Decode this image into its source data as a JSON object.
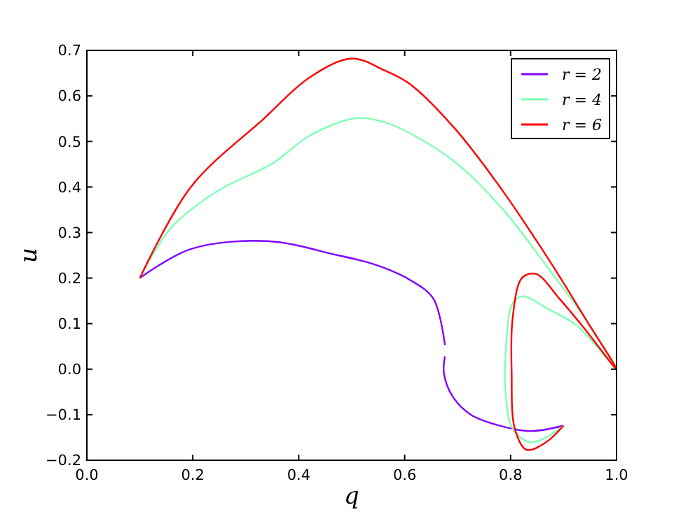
{
  "chart_data": {
    "type": "line",
    "xlabel": "q",
    "ylabel": "u",
    "xlim": [
      0,
      1
    ],
    "ylim": [
      -0.2,
      0.7
    ],
    "xticks": [
      {
        "value": 0,
        "label": "0.0"
      },
      {
        "value": 0.2,
        "label": "0.2"
      },
      {
        "value": 0.4,
        "label": "0.4"
      },
      {
        "value": 0.6,
        "label": "0.6"
      },
      {
        "value": 0.8,
        "label": "0.8"
      },
      {
        "value": 1,
        "label": "1.0"
      }
    ],
    "yticks": [
      {
        "value": -0.2,
        "label": "−0.2"
      },
      {
        "value": -0.1,
        "label": "−0.1"
      },
      {
        "value": 0,
        "label": "0.0"
      },
      {
        "value": 0.1,
        "label": "0.1"
      },
      {
        "value": 0.2,
        "label": "0.2"
      },
      {
        "value": 0.3,
        "label": "0.3"
      },
      {
        "value": 0.4,
        "label": "0.4"
      },
      {
        "value": 0.5,
        "label": "0.5"
      },
      {
        "value": 0.6,
        "label": "0.6"
      },
      {
        "value": 0.7,
        "label": "0.7"
      }
    ],
    "grid": false,
    "legend": "top right",
    "marker": "none",
    "line_style": "solid",
    "series": [
      {
        "name": "r = 2",
        "color": "#8000ff",
        "x": [
          0.1,
          0.197,
          0.342,
          0.474,
          0.522,
          0.562,
          0.61,
          0.654,
          0.676,
          null,
          0.676,
          0.674,
          0.69,
          0.725,
          0.786,
          0.839,
          0.9
        ],
        "values": [
          0.2,
          0.264,
          0.281,
          0.25,
          0.237,
          0.222,
          0.196,
          0.155,
          0.053,
          null,
          0.028,
          -0.008,
          -0.059,
          -0.1,
          -0.126,
          -0.136,
          -0.124
        ]
      },
      {
        "name": "r = 4",
        "color": "#80ffb4",
        "x": [
          0.1,
          0.158,
          0.245,
          0.351,
          0.421,
          0.509,
          0.562,
          0.61,
          0.698,
          0.786,
          0.874,
          0.945,
          1.0,
          0.927,
          0.874,
          0.822,
          0.804,
          0.791,
          0.791,
          0.804,
          0.835,
          0.865,
          0.9
        ],
        "values": [
          0.2,
          0.309,
          0.39,
          0.452,
          0.513,
          0.551,
          0.542,
          0.518,
          0.452,
          0.35,
          0.217,
          0.104,
          0.0,
          0.094,
          0.13,
          0.16,
          0.145,
          0.043,
          -0.059,
          -0.131,
          -0.16,
          -0.151,
          -0.124
        ]
      },
      {
        "name": "r = 6",
        "color": "#ff0000",
        "x": [
          0.1,
          0.197,
          0.333,
          0.421,
          0.5,
          0.562,
          0.61,
          0.698,
          0.786,
          0.874,
          0.945,
          1.0,
          0.936,
          0.892,
          0.848,
          0.822,
          0.804,
          0.802,
          0.808,
          0.83,
          0.865,
          0.9
        ],
        "values": [
          0.2,
          0.401,
          0.549,
          0.641,
          0.682,
          0.656,
          0.626,
          0.524,
          0.39,
          0.237,
          0.104,
          0.0,
          0.094,
          0.155,
          0.209,
          0.201,
          0.114,
          -0.008,
          -0.131,
          -0.177,
          -0.162,
          -0.124
        ]
      }
    ]
  }
}
